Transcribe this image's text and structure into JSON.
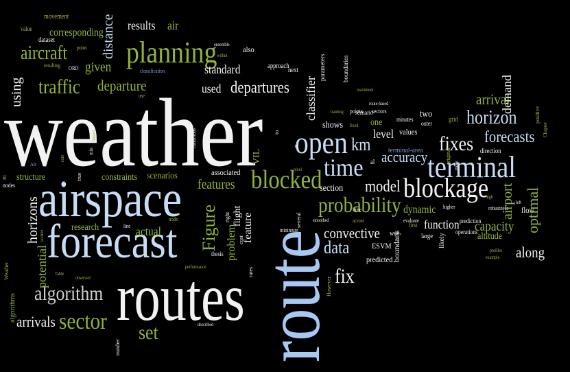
{
  "words": {
    "weather": "weather",
    "route": "route",
    "routes": "routes",
    "airspace": "airspace",
    "forecast": "forecast",
    "terminal": "terminal",
    "planning": "planning",
    "blockage": "blockage",
    "blocked": "blocked",
    "open": "open",
    "time": "time",
    "probability": "probability",
    "algorithm": "algorithm",
    "sector": "sector",
    "aircraft": "aircraft",
    "traffic": "traffic",
    "departure": "departure",
    "departures": "departures",
    "fixes": "fixes",
    "fix": "fix",
    "horizon": "horizon",
    "forecasts": "forecasts",
    "arrival": "arrival",
    "arrivals": "arrivals",
    "model": "model",
    "features": "features",
    "feature": "feature",
    "figure": "Figure",
    "data": "data",
    "set": "set",
    "km": "km",
    "accuracy": "accuracy",
    "convective": "convective",
    "capacity": "capacity",
    "along": "along",
    "optimal": "optimal",
    "airport": "airport",
    "demand": "demand",
    "results": "results",
    "air": "air",
    "standard": "standard",
    "used": "used",
    "given": "given",
    "distance": "distance",
    "using": "using",
    "scenarios": "scenarios",
    "constraints": "constraints",
    "structure": "structure",
    "horizons": "horizons",
    "potential": "potential",
    "research": "research",
    "actual": "actual",
    "function": "function",
    "dynamic": "dynamic",
    "level": "level",
    "shows": "shows",
    "classifier": "classifier",
    "section": "section",
    "flow": "flow",
    "altitude": "altitude",
    "predicted": "predicted",
    "ESVM": "ESVM",
    "approach": "approach",
    "also": "also",
    "corresponding": "corresponding",
    "movement": "movement",
    "value": "value",
    "dataset": "dataset",
    "point": "point",
    "resulting": "resulting",
    "ORD": "ORD",
    "classification": "classification",
    "use": "use",
    "next": "next",
    "ensemble": "ensemble",
    "within": "within",
    "VIL": "VIL",
    "one": "one",
    "two": "two",
    "sectors": "sectors",
    "minutes": "minutes",
    "grid": "grid",
    "values": "values",
    "outer": "outer",
    "direction": "direction",
    "terminal_area": "terminal-area",
    "associated": "associated",
    "scenario": "scenario",
    "points": "points",
    "maximum": "maximum",
    "boundaries": "boundaries",
    "parameters": "parameters",
    "route_based": "route-based",
    "training": "training",
    "fixed": "fixed",
    "positive": "positive",
    "chapter": "Chapter",
    "Air": "Air",
    "rate": "rate",
    "min": "min",
    "based": "based",
    "conditions": "conditions",
    "true": "true",
    "nodes": "nodes",
    "RI": "RI",
    "scores": "scores",
    "Weather": "Weather",
    "algorithms": "algorithms",
    "Table": "Table",
    "observed": "observed",
    "performance": "performance",
    "line": "line",
    "node": "node",
    "right": "right",
    "flight": "flight",
    "problem": "problem",
    "thesis": "thesis",
    "cost": "cost",
    "number": "number",
    "described": "described",
    "rates": "rates",
    "minimum": "minimum",
    "several": "several",
    "smoothed": "smoothed",
    "pixel": "pixel",
    "et": "et",
    "al": "al",
    "false": "false",
    "However": "However",
    "across": "across",
    "evaluate": "evaluate",
    "boundary": "boundary",
    "well": "well",
    "first": "first",
    "large": "large",
    "likely": "likely",
    "original": "original",
    "may": "may",
    "higher": "higher",
    "high": "high",
    "robustness": "robustness",
    "left": "left",
    "prediction": "prediction",
    "operations": "operations",
    "profiles": "profiles",
    "example": "example",
    "to": "to"
  }
}
